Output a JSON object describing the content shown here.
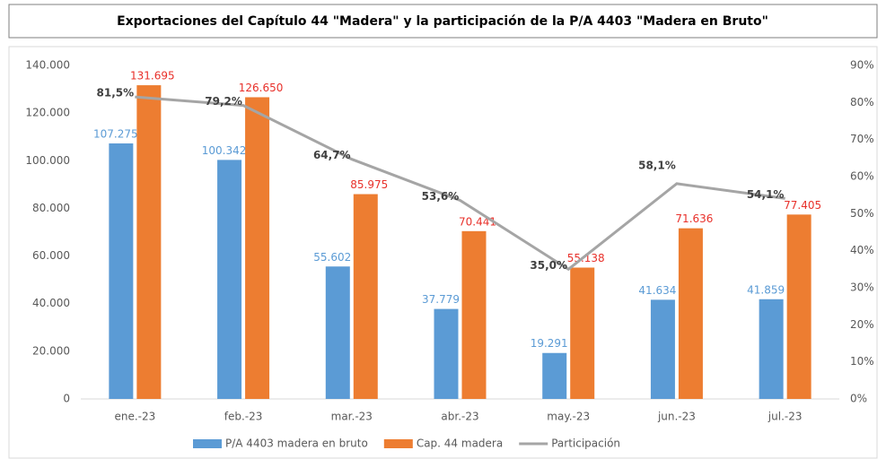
{
  "chart_data": {
    "type": "bar",
    "title": "Exportaciones del Capítulo 44 \"Madera\" y la participación de la P/A 4403 \"Madera en Bruto\"",
    "categories": [
      "ene.-23",
      "feb.-23",
      "mar.-23",
      "abr.-23",
      "may.-23",
      "jun.-23",
      "jul.-23"
    ],
    "series": [
      {
        "name": "P/A 4403 madera en bruto",
        "color": "#5b9bd5",
        "label_color": "#5b9bd5",
        "values": [
          107275,
          100342,
          55602,
          37779,
          19291,
          41634,
          41859
        ],
        "value_labels": [
          "107.275",
          "100.342",
          "55.602",
          "37.779",
          "19.291",
          "41.634",
          "41.859"
        ]
      },
      {
        "name": "Cap. 44 madera",
        "color": "#ed7d31",
        "label_color": "#e8302a",
        "values": [
          131695,
          126650,
          85975,
          70441,
          55138,
          71636,
          77405
        ],
        "value_labels": [
          "131.695",
          "126.650",
          "85.975",
          "70.441",
          "55.138",
          "71.636",
          "77.405"
        ]
      },
      {
        "name": "Participación",
        "type": "line",
        "axis": "y2",
        "color": "#a5a5a5",
        "label_color": "#404040",
        "values": [
          81.5,
          79.2,
          64.7,
          53.6,
          35.0,
          58.1,
          54.1
        ],
        "value_labels": [
          "81,5%",
          "79,2%",
          "64,7%",
          "53,6%",
          "35,0%",
          "58,1%",
          "54,1%"
        ]
      }
    ],
    "ylim": [
      0,
      140000
    ],
    "yticks": [
      0,
      {
        "value": 20000,
        "label": "20.000"
      },
      {
        "value": 40000,
        "label": "40.000"
      },
      {
        "value": 60000,
        "label": "60.000"
      },
      {
        "value": 80000,
        "label": "80.000"
      },
      {
        "value": 100000,
        "label": "100.000"
      },
      {
        "value": 120000,
        "label": "120.000"
      },
      {
        "value": 140000,
        "label": "140.000"
      }
    ],
    "y2lim": [
      0,
      90
    ],
    "y2ticks": [
      {
        "value": 0,
        "label": "0%"
      },
      {
        "value": 10,
        "label": "10%"
      },
      {
        "value": 20,
        "label": "20%"
      },
      {
        "value": 30,
        "label": "30%"
      },
      {
        "value": 40,
        "label": "40%"
      },
      {
        "value": 50,
        "label": "50%"
      },
      {
        "value": 60,
        "label": "60%"
      },
      {
        "value": 70,
        "label": "70%"
      },
      {
        "value": 80,
        "label": "80%"
      },
      {
        "value": 90,
        "label": "90%"
      }
    ],
    "grid": false,
    "legend": "bottom"
  }
}
